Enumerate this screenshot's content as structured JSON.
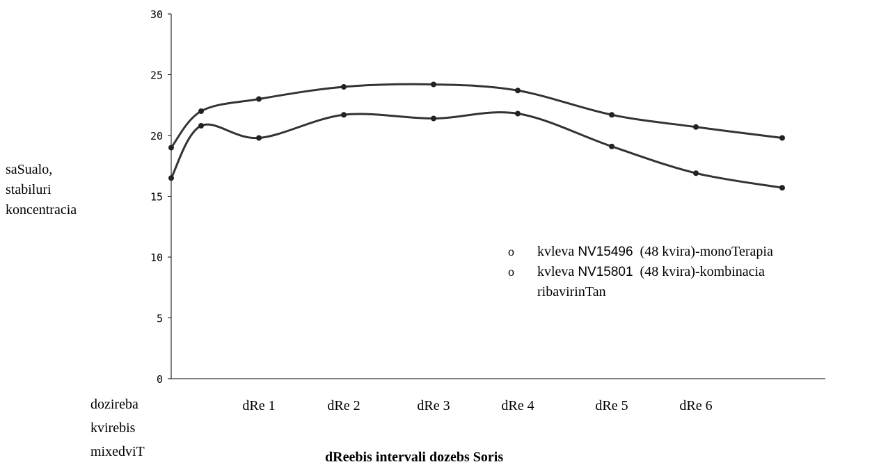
{
  "chart_data": {
    "type": "line",
    "ylabel_lines": [
      "saSualo,",
      "stabiluri",
      "koncentracia"
    ],
    "xlabel": "dReebis intervali dozebs Soris",
    "corner_label_lines": [
      "dozireba",
      "kvirebis",
      "mixedviT"
    ],
    "categories": [
      "",
      "",
      "dRe 1",
      "dRe 2",
      "dRe 3",
      "dRe 4",
      "dRe 5",
      "dRe 6",
      ""
    ],
    "x_ticks": [
      "dRe 1",
      "dRe 2",
      "dRe 3",
      "dRe 4",
      "dRe 5",
      "dRe 6"
    ],
    "y_ticks": [
      "0",
      "5",
      "10",
      "15",
      "20",
      "25",
      "30"
    ],
    "ylim": [
      0,
      30
    ],
    "grid": false,
    "legend_position": "right",
    "series": [
      {
        "name": "kvleva NV15496 (48 kvira)-monoTerapia",
        "legend_prefix": "kvleva ",
        "legend_code": "NV15496",
        "legend_suffix": "  (48 kvira)-monoTerapia",
        "values": [
          19.0,
          22.0,
          23.0,
          24.0,
          24.2,
          23.7,
          21.7,
          20.7,
          19.8
        ],
        "color": "#333333"
      },
      {
        "name": "kvleva NV15801 (48 kvira)-kombinacia ribavirinTan",
        "legend_prefix": "kvleva ",
        "legend_code": "NV15801",
        "legend_suffix": "  (48 kvira)-kombinacia",
        "legend_line2": "ribavirinTan",
        "values": [
          16.5,
          20.8,
          19.8,
          21.7,
          21.4,
          21.8,
          19.1,
          16.9,
          15.7
        ],
        "color": "#333333"
      }
    ]
  },
  "legend_marker": "o"
}
